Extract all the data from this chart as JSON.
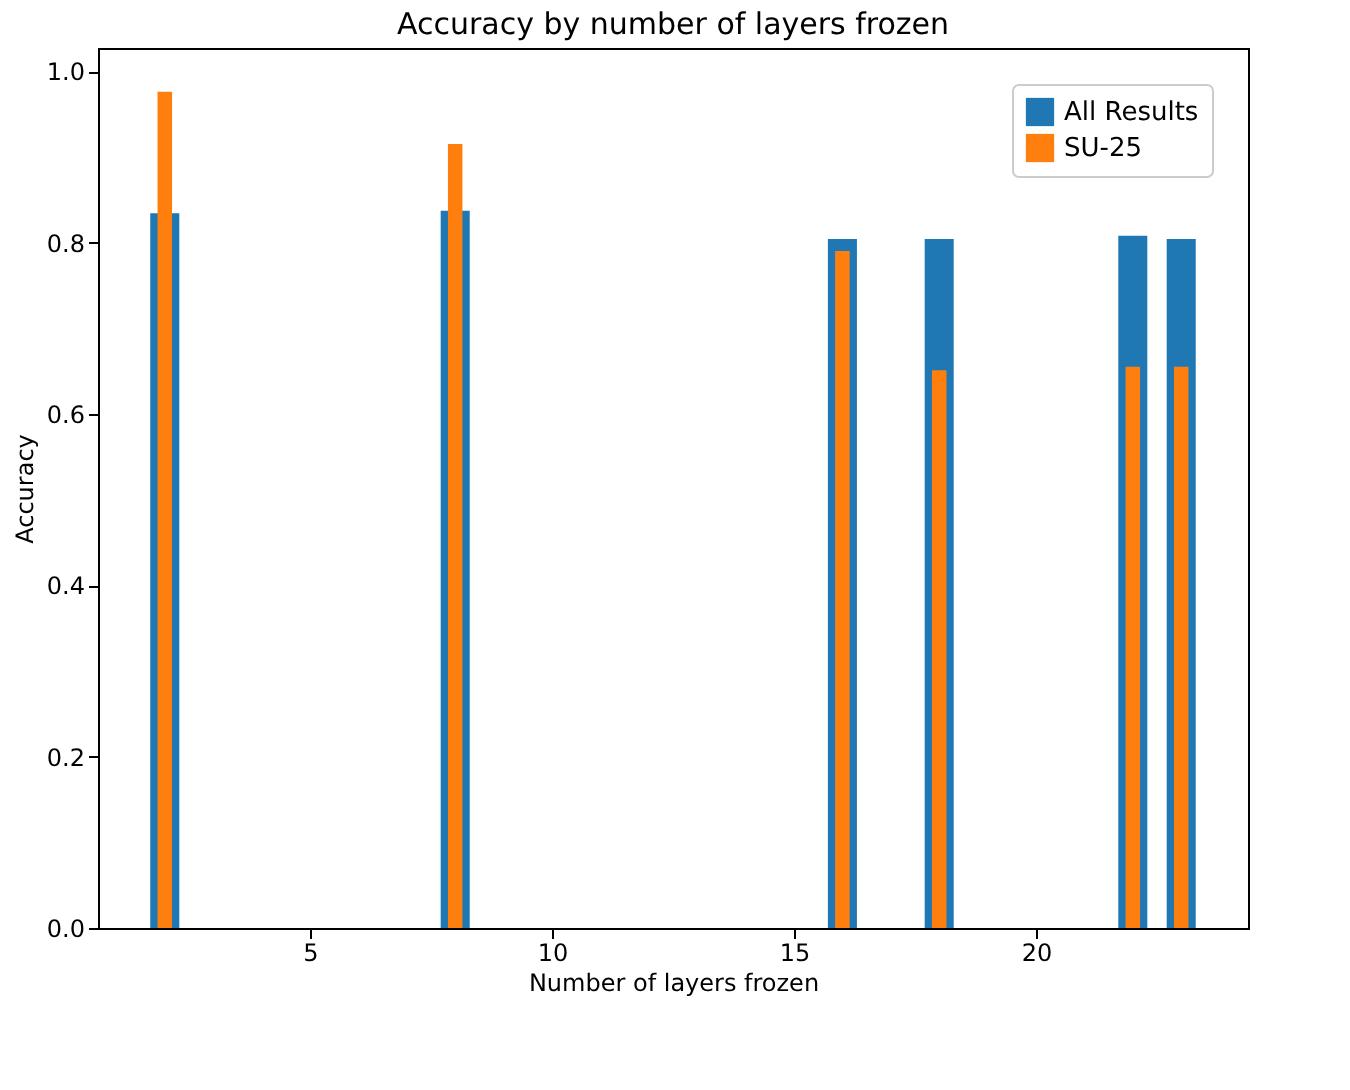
{
  "chart_data": {
    "type": "bar",
    "title": "Accuracy by number of layers frozen",
    "xlabel": "Number of layers frozen",
    "ylabel": "Accuracy",
    "x": [
      2,
      8,
      16,
      18,
      22,
      23
    ],
    "series": [
      {
        "name": "All Results",
        "color": "#1f77b4",
        "values": [
          0.834,
          0.837,
          0.804,
          0.804,
          0.808,
          0.804
        ]
      },
      {
        "name": "SU-25",
        "color": "#ff7f0e",
        "values": [
          0.976,
          0.915,
          0.79,
          0.651,
          0.655,
          0.655
        ]
      }
    ],
    "xlim": [
      0.62,
      24.38
    ],
    "xticks": [
      5,
      10,
      15,
      20
    ],
    "ylim": [
      0,
      1.027
    ],
    "yticks": [
      {
        "value": 0,
        "label": "0.0"
      },
      0.2,
      0.4,
      0.6,
      0.8,
      {
        "value": 1,
        "label": "1.0"
      }
    ],
    "grid": false,
    "legend": "top right"
  }
}
